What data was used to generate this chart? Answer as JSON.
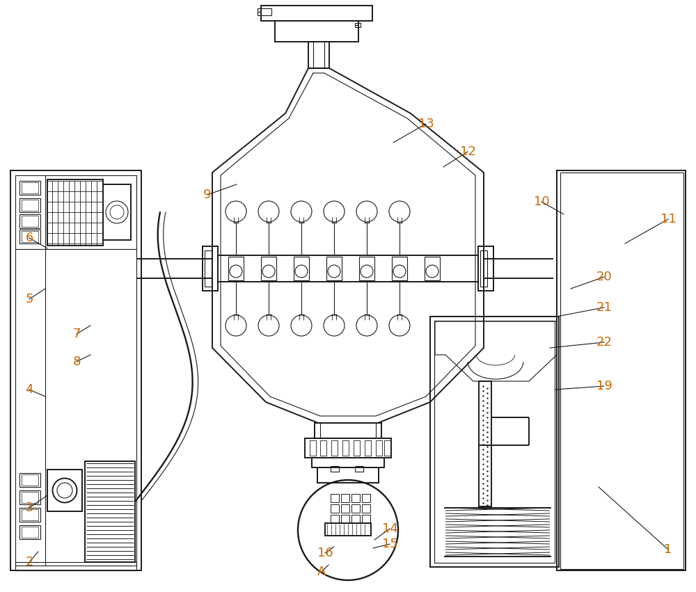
{
  "bg_color": "#ffffff",
  "lc": "#1a1a1a",
  "lw": 1.4,
  "tlw": 0.8,
  "label_color": "#cc6600",
  "label_fontsize": 13,
  "fig_width": 10.0,
  "fig_height": 8.51
}
